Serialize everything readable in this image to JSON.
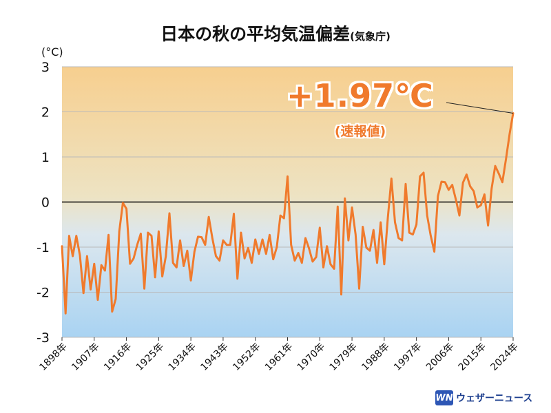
{
  "title": {
    "main": "日本の秋の平均気温偏差",
    "source": "(気象庁)"
  },
  "unit_label": "(°C)",
  "callout": {
    "value": "+1.97℃",
    "note": "(速報値)"
  },
  "branding": {
    "logo_mark": "WN",
    "logo_text": "ウェザーニュース"
  },
  "colors": {
    "line": "#f07a2c",
    "background_top": "#f7cf8f",
    "background_bottom": "#a9d3f2",
    "zero_line": "#000000",
    "grid": "#b9b9b9"
  },
  "chart_data": {
    "type": "line",
    "title": "日本の秋の平均気温偏差",
    "xlabel": "",
    "ylabel": "(°C)",
    "ylim": [
      -3,
      3
    ],
    "xlim": [
      1898,
      2024
    ],
    "yticks": [
      3,
      2,
      1,
      0,
      -1,
      -2,
      -3
    ],
    "xticks": [
      1898,
      1907,
      1916,
      1925,
      1934,
      1943,
      1952,
      1961,
      1970,
      1979,
      1988,
      1997,
      2006,
      2015,
      2024
    ],
    "xtick_labels": [
      "1898年",
      "1907年",
      "1916年",
      "1925年",
      "1934年",
      "1943年",
      "1952年",
      "1961年",
      "1970年",
      "1979年",
      "1988年",
      "1997年",
      "2006年",
      "2015年",
      "2024年"
    ],
    "grid": true,
    "legend": "none",
    "series": [
      {
        "start_year": 1898,
        "values": [
          -0.98,
          -2.47,
          -0.75,
          -1.2,
          -0.75,
          -1.18,
          -2.02,
          -1.2,
          -1.94,
          -1.37,
          -2.17,
          -1.4,
          -1.52,
          -0.73,
          -2.43,
          -2.15,
          -0.65,
          -0.02,
          -0.15,
          -1.37,
          -1.25,
          -0.95,
          -0.7,
          -1.92,
          -0.68,
          -0.75,
          -1.67,
          -0.65,
          -1.65,
          -1.2,
          -0.25,
          -1.35,
          -1.45,
          -0.85,
          -1.42,
          -1.08,
          -1.74,
          -1.1,
          -0.77,
          -0.78,
          -0.95,
          -0.33,
          -0.8,
          -1.2,
          -1.3,
          -0.85,
          -0.95,
          -0.95,
          -0.26,
          -1.7,
          -0.68,
          -1.25,
          -1.02,
          -1.35,
          -0.83,
          -1.15,
          -0.83,
          -1.15,
          -0.73,
          -1.27,
          -1.0,
          -0.3,
          -0.36,
          0.57,
          -0.95,
          -1.3,
          -1.13,
          -1.35,
          -0.8,
          -1.03,
          -1.32,
          -1.22,
          -0.57,
          -1.45,
          -0.98,
          -1.38,
          -1.48,
          -0.1,
          -2.05,
          0.08,
          -0.85,
          -0.12,
          -0.72,
          -1.92,
          -0.55,
          -1.01,
          -1.08,
          -0.62,
          -1.35,
          -0.45,
          -1.38,
          -0.35,
          0.52,
          -0.45,
          -0.8,
          -0.85,
          0.4,
          -0.68,
          -0.72,
          -0.5,
          0.57,
          0.65,
          -0.3,
          -0.75,
          -1.1,
          0.13,
          0.45,
          0.44,
          0.27,
          0.38,
          0.06,
          -0.3,
          0.43,
          0.61,
          0.35,
          0.24,
          -0.12,
          -0.07,
          0.17,
          -0.52,
          0.3,
          0.8,
          0.63,
          0.44,
          0.95,
          1.5,
          1.97
        ]
      }
    ],
    "annotations": [
      {
        "text": "+1.97℃",
        "year": 2024,
        "value": 1.97
      },
      {
        "text": "(速報値)"
      }
    ]
  }
}
